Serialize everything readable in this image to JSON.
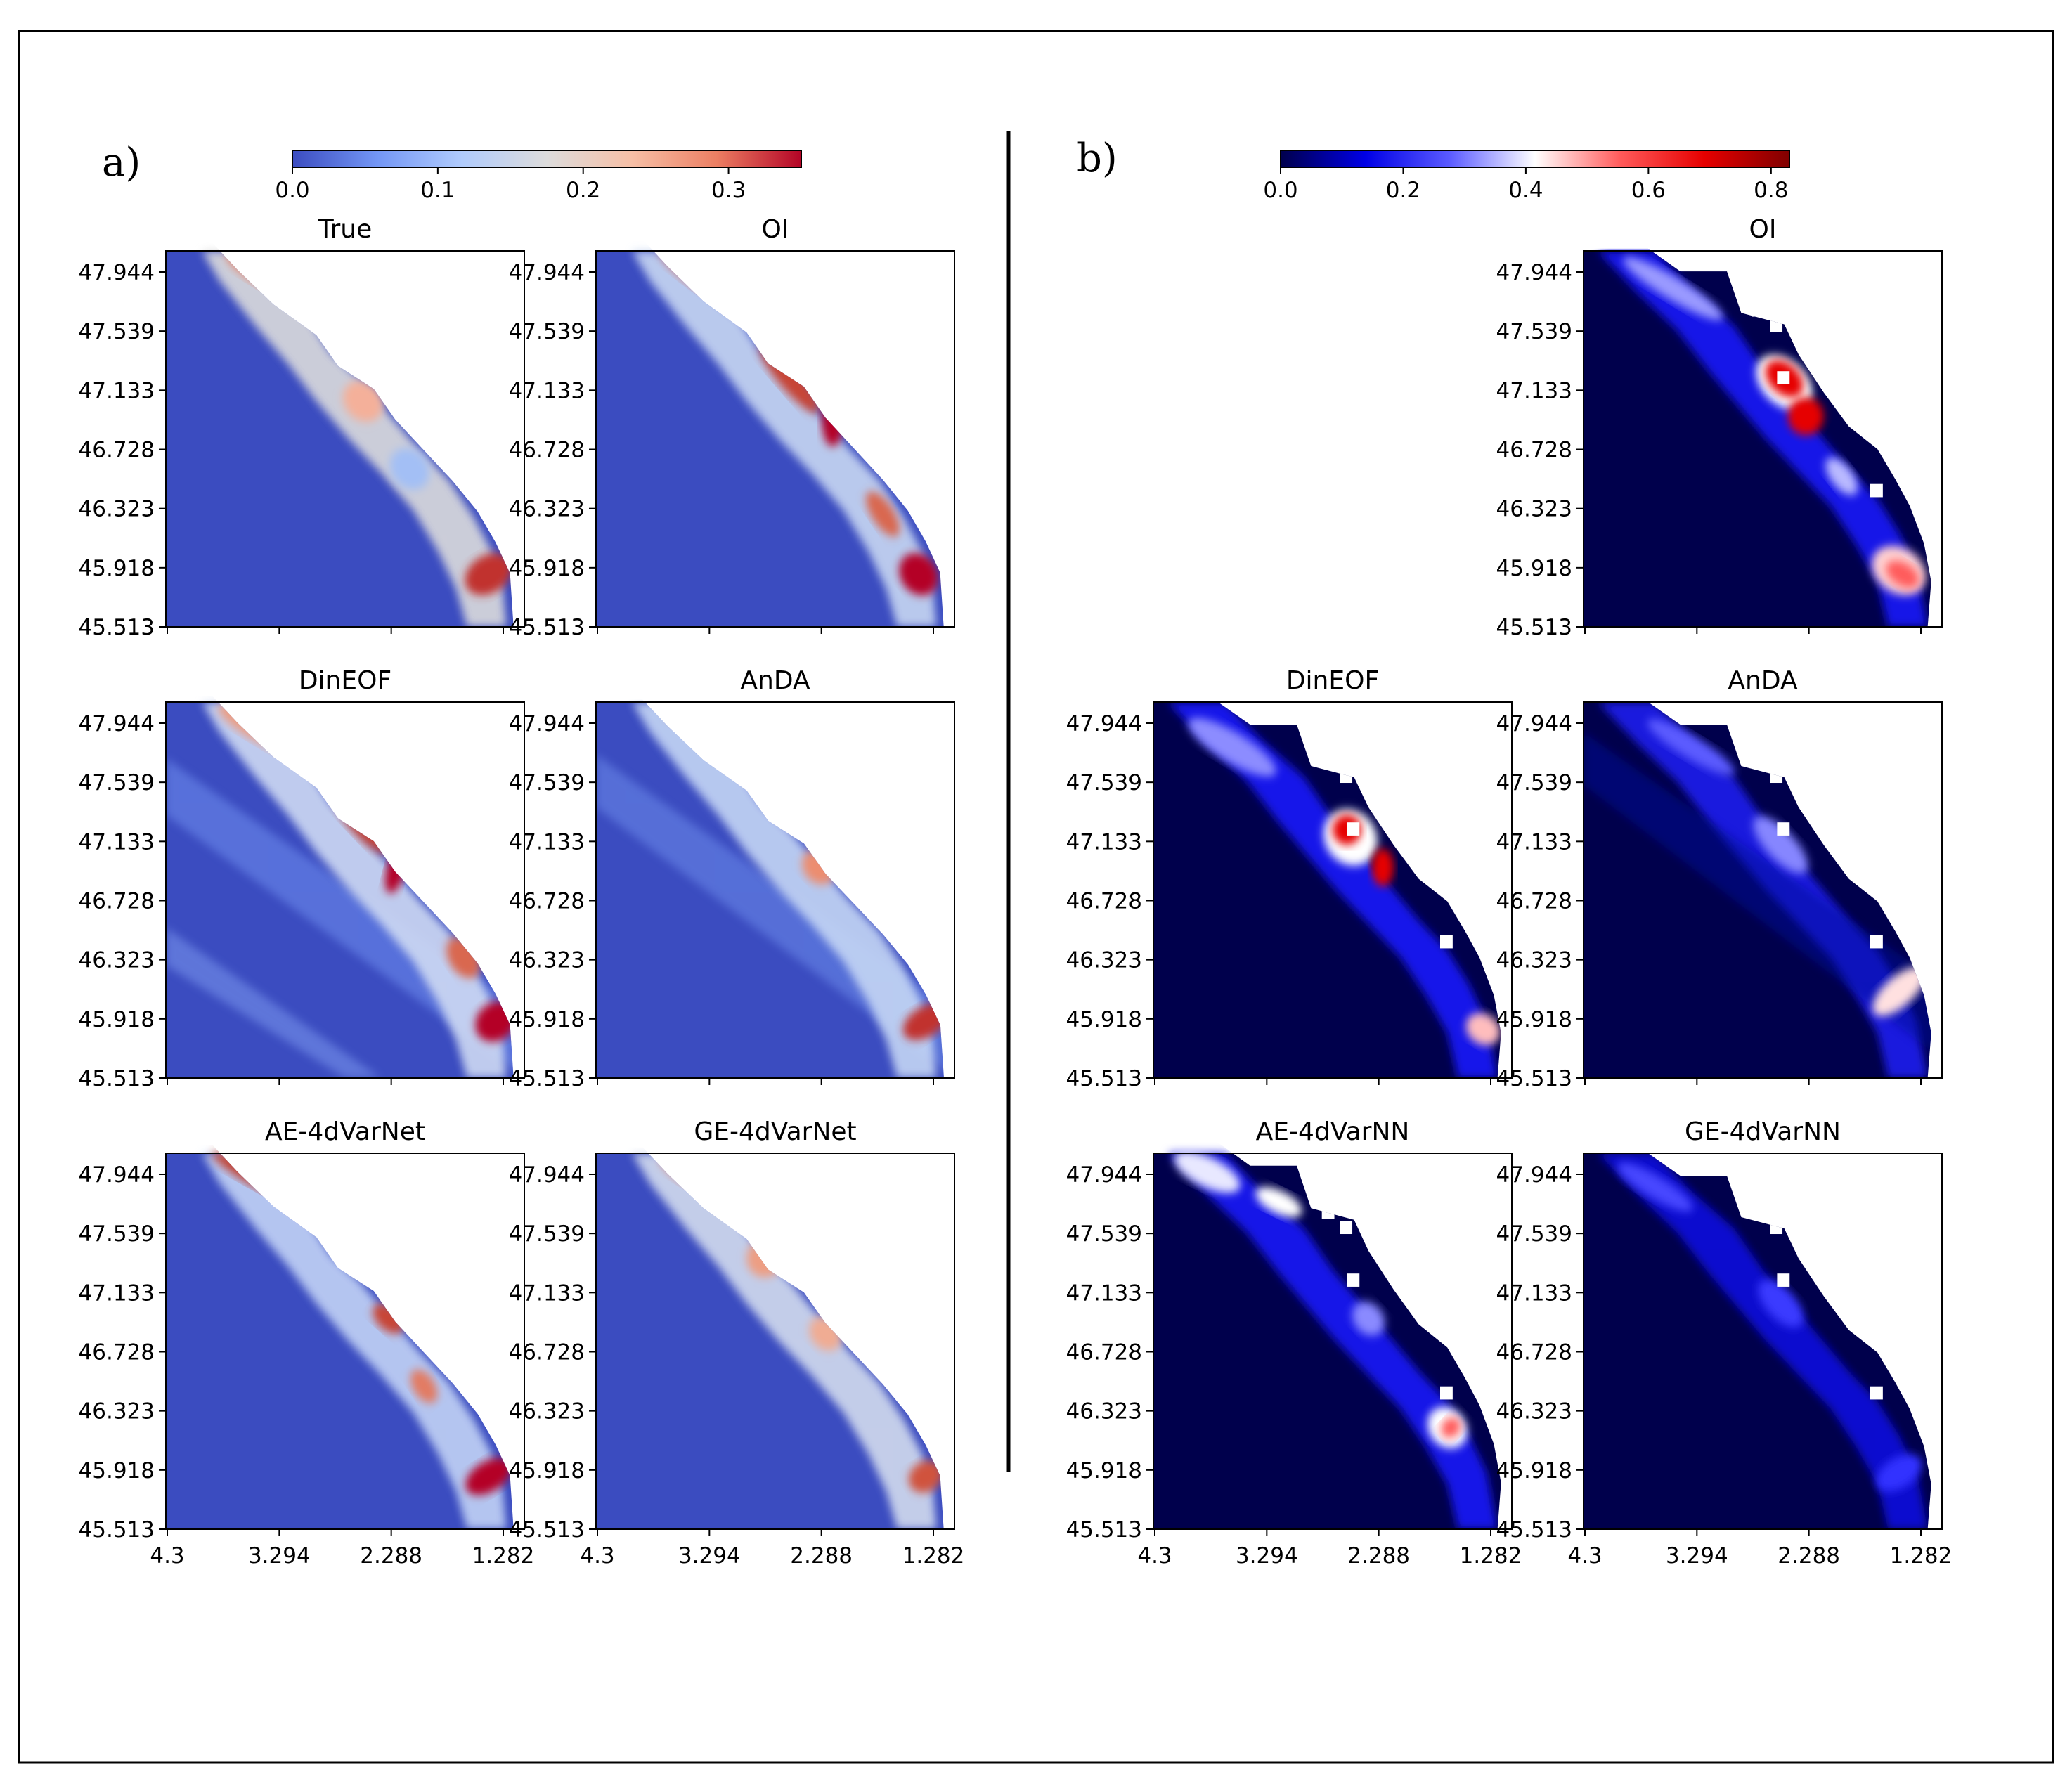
{
  "figure": {
    "panels": [
      {
        "label": "a)",
        "colorbar": {
          "colormap": "coolwarm",
          "colors": [
            "#3b4cc0",
            "#7396f5",
            "#b0cbfc",
            "#dddcdc",
            "#f6bfa6",
            "#ec7f63",
            "#b40426"
          ],
          "range": [
            0,
            0.35
          ],
          "ticks": [
            0,
            0.1,
            0.2,
            0.3
          ],
          "tick_labels": [
            "0.0",
            "0.1",
            "0.2",
            "0.3"
          ]
        },
        "maps": [
          {
            "title": "True",
            "row": 0,
            "col": 0,
            "style": "true"
          },
          {
            "title": "OI",
            "row": 0,
            "col": 1,
            "style": "oi"
          },
          {
            "title": "DinEOF",
            "row": 1,
            "col": 0,
            "style": "dineof"
          },
          {
            "title": "AnDA",
            "row": 1,
            "col": 1,
            "style": "anda"
          },
          {
            "title": "AE-4dVarNet",
            "row": 2,
            "col": 0,
            "style": "ae"
          },
          {
            "title": "GE-4dVarNet",
            "row": 2,
            "col": 1,
            "style": "ge"
          }
        ]
      },
      {
        "label": "b)",
        "colorbar": {
          "colormap": "seismic",
          "colors": [
            "#00004c",
            "#0000e6",
            "#5b5bff",
            "#ffffff",
            "#ff5b5b",
            "#e60000",
            "#800000"
          ],
          "range": [
            0,
            0.83
          ],
          "ticks": [
            0,
            0.2,
            0.4,
            0.6,
            0.8
          ],
          "tick_labels": [
            "0.0",
            "0.2",
            "0.4",
            "0.6",
            "0.8"
          ]
        },
        "maps": [
          {
            "title": "OI",
            "row": 0,
            "col": 1,
            "style": "oi"
          },
          {
            "title": "DinEOF",
            "row": 1,
            "col": 0,
            "style": "dineof"
          },
          {
            "title": "AnDA",
            "row": 1,
            "col": 1,
            "style": "anda"
          },
          {
            "title": "AE-4dVarNN",
            "row": 2,
            "col": 0,
            "style": "ae"
          },
          {
            "title": "GE-4dVarNN",
            "row": 2,
            "col": 1,
            "style": "ge"
          }
        ]
      }
    ],
    "y_tick_labels": [
      "47.944",
      "47.539",
      "47.133",
      "46.728",
      "46.323",
      "45.918",
      "45.513"
    ],
    "x_tick_labels": [
      "4.3",
      "3.294",
      "2.288",
      "1.282"
    ]
  }
}
